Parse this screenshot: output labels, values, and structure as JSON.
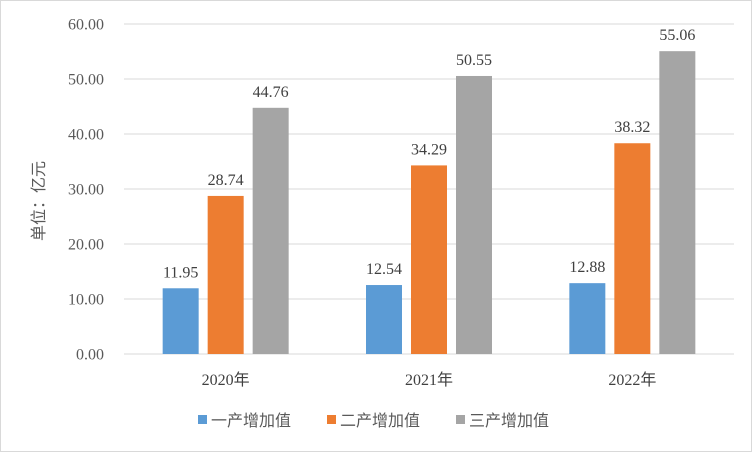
{
  "chart_data": {
    "type": "bar",
    "categories": [
      "2020年",
      "2021年",
      "2022年"
    ],
    "series": [
      {
        "name": "一产增加值",
        "values": [
          11.95,
          12.54,
          12.88
        ],
        "color": "#5B9BD5"
      },
      {
        "name": "二产增加值",
        "values": [
          28.74,
          34.29,
          38.32
        ],
        "color": "#ED7D31"
      },
      {
        "name": "三产增加值",
        "values": [
          44.76,
          50.55,
          55.06
        ],
        "color": "#A5A5A5"
      }
    ],
    "ylabel": "单位：亿元",
    "yticks": [
      "0.00",
      "10.00",
      "20.00",
      "30.00",
      "40.00",
      "50.00",
      "60.00"
    ],
    "ylim": [
      0,
      60
    ],
    "grid": true,
    "legend_position": "bottom",
    "gridline_color": "#d9d9d9"
  }
}
